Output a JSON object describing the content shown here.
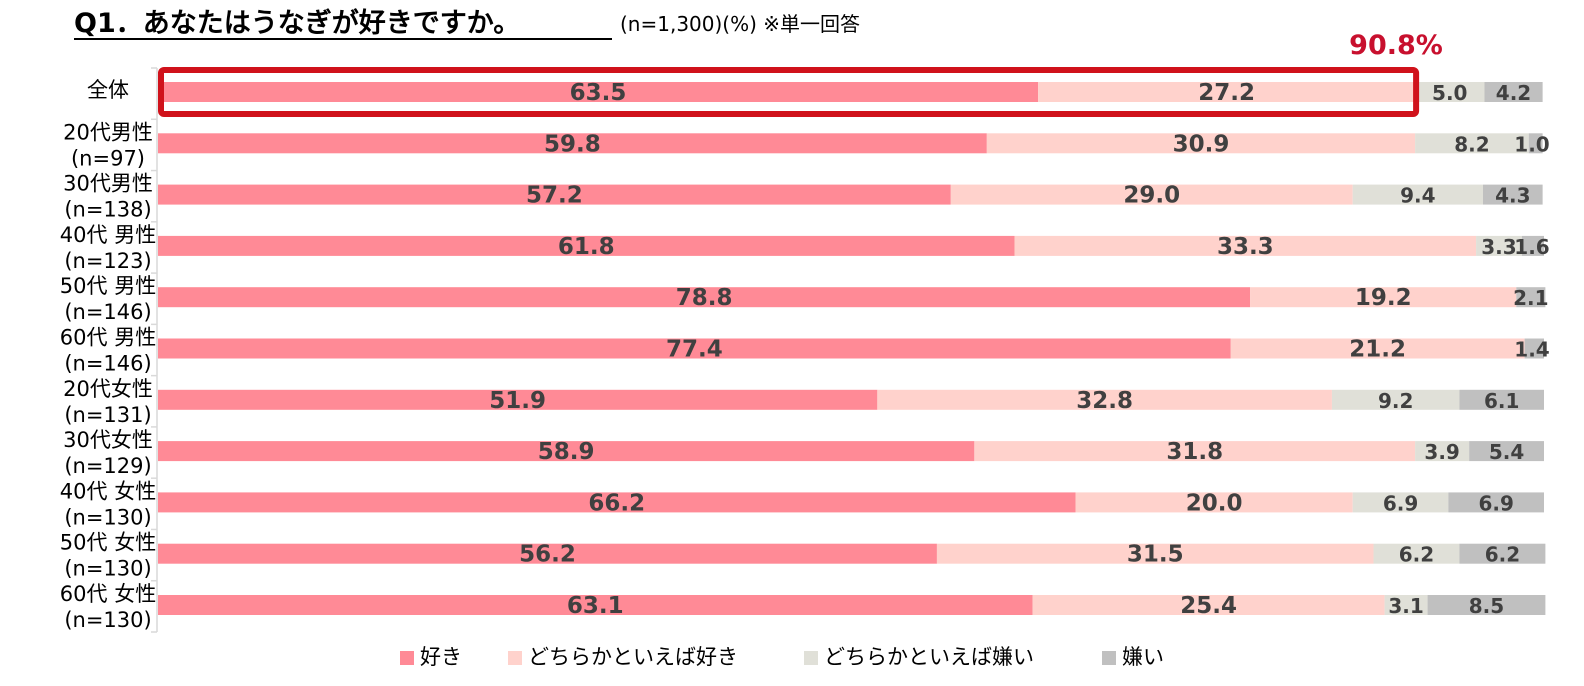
{
  "chart_data": {
    "type": "bar",
    "orientation": "horizontal",
    "stacked": true,
    "title": "Q1．あなたはうなぎが好きですか。",
    "subtitle": "(n=1,300)(%) ※単一回答",
    "highlight": {
      "category_index": 0,
      "label": "90.8%"
    },
    "xlim": [
      0,
      100
    ],
    "xlabel": "",
    "ylabel": "",
    "grid": false,
    "legend_position": "bottom",
    "categories": [
      [
        "全体"
      ],
      [
        "20代男性",
        "(n=97)"
      ],
      [
        "30代男性",
        "(n=138)"
      ],
      [
        "40代 男性",
        "(n=123)"
      ],
      [
        "50代 男性",
        "(n=146)"
      ],
      [
        "60代 男性",
        "(n=146)"
      ],
      [
        "20代女性",
        "(n=131)"
      ],
      [
        "30代女性",
        "(n=129)"
      ],
      [
        "40代 女性",
        "(n=130)"
      ],
      [
        "50代 女性",
        "(n=130)"
      ],
      [
        "60代 女性",
        "(n=130)"
      ]
    ],
    "series": [
      {
        "name": "好き",
        "color": "#FF8A96",
        "values": [
          63.5,
          59.8,
          57.2,
          61.8,
          78.8,
          77.4,
          51.9,
          58.9,
          66.2,
          56.2,
          63.1
        ],
        "labels": [
          "63.5",
          "59.8",
          "57.2",
          "61.8",
          "78.8",
          "77.4",
          "51.9",
          "58.9",
          "66.2",
          "56.2",
          "63.1"
        ]
      },
      {
        "name": "どちらかといえば好き",
        "color": "#FFD2CC",
        "values": [
          27.2,
          30.9,
          29.0,
          33.3,
          19.2,
          21.2,
          32.8,
          31.8,
          20.0,
          31.5,
          25.4
        ],
        "labels": [
          "27.2",
          "30.9",
          "29.0",
          "33.3",
          "19.2",
          "21.2",
          "32.8",
          "31.8",
          "20.0",
          "31.5",
          "25.4"
        ]
      },
      {
        "name": "どちらかといえば嫌い",
        "color": "#E0E0D8",
        "values": [
          5.0,
          8.2,
          9.4,
          3.3,
          0.0,
          0.0,
          9.2,
          3.9,
          6.9,
          6.2,
          3.1
        ],
        "labels": [
          "5.0",
          "8.2",
          "9.4",
          "3.3",
          "",
          "",
          "9.2",
          "3.9",
          "6.9",
          "6.2",
          "3.1"
        ]
      },
      {
        "name": "嫌い",
        "color": "#C0C0C0",
        "values": [
          4.2,
          1.0,
          4.3,
          1.6,
          2.1,
          1.4,
          6.1,
          5.4,
          6.9,
          6.2,
          8.5
        ],
        "labels": [
          "4.2",
          "1.0",
          "4.3",
          "1.6",
          "2.1",
          "1.4",
          "6.1",
          "5.4",
          "6.9",
          "6.2",
          "8.5"
        ]
      }
    ],
    "colors": {
      "highlight_border": "#D0121B",
      "highlight_text": "#C8102E",
      "label_text": "#404040",
      "axis": "#D9D9D9"
    }
  }
}
